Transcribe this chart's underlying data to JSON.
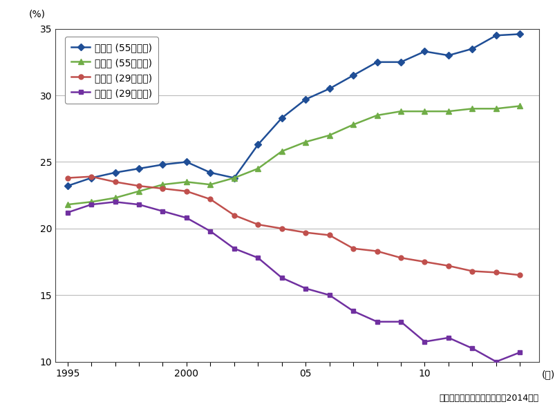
{
  "years": [
    1995,
    1996,
    1997,
    1998,
    1999,
    2000,
    2001,
    2002,
    2003,
    2004,
    2005,
    2006,
    2007,
    2008,
    2009,
    2010,
    2011,
    2012,
    2013,
    2014
  ],
  "kensetsu_55up": [
    23.2,
    23.8,
    24.2,
    24.5,
    24.8,
    25.0,
    24.2,
    23.8,
    26.3,
    28.3,
    29.7,
    30.5,
    31.5,
    32.5,
    32.5,
    33.3,
    33.0,
    33.5,
    34.5,
    34.6
  ],
  "zensan_55up": [
    21.8,
    22.0,
    22.3,
    22.8,
    23.3,
    23.5,
    23.3,
    23.8,
    24.5,
    25.8,
    26.5,
    27.0,
    27.8,
    28.5,
    28.8,
    28.8,
    28.8,
    29.0,
    29.0,
    29.2
  ],
  "zensan_29below": [
    23.8,
    23.9,
    23.5,
    23.2,
    23.0,
    22.8,
    22.2,
    21.0,
    20.3,
    20.0,
    19.7,
    19.5,
    18.5,
    18.3,
    17.8,
    17.5,
    17.2,
    16.8,
    16.7,
    16.5
  ],
  "kensetsu_29below": [
    21.2,
    21.8,
    22.0,
    21.8,
    21.3,
    20.8,
    19.8,
    18.5,
    17.8,
    16.3,
    15.5,
    15.0,
    13.8,
    13.0,
    13.0,
    11.5,
    11.8,
    11.0,
    10.0,
    10.7
  ],
  "color_blue": "#1f4e96",
  "color_green": "#70ad47",
  "color_red": "#c0504d",
  "color_purple": "#7030a0",
  "label_k55": "建設業 (55歳以上)",
  "label_z55": "全産業 (55歳以上)",
  "label_z29": "全産業 (29歳以下)",
  "label_k29": "建設業 (29歳以下)",
  "ylabel": "(%)",
  "xlabel_unit": "(年)",
  "source": "出典：総務省「労働力調査（2014）」",
  "ylim_min": 10,
  "ylim_max": 35,
  "yticks": [
    10,
    15,
    20,
    25,
    30,
    35
  ],
  "bg_color": "#ffffff",
  "border_color": "#444444",
  "grid_color": "#bbbbbb"
}
